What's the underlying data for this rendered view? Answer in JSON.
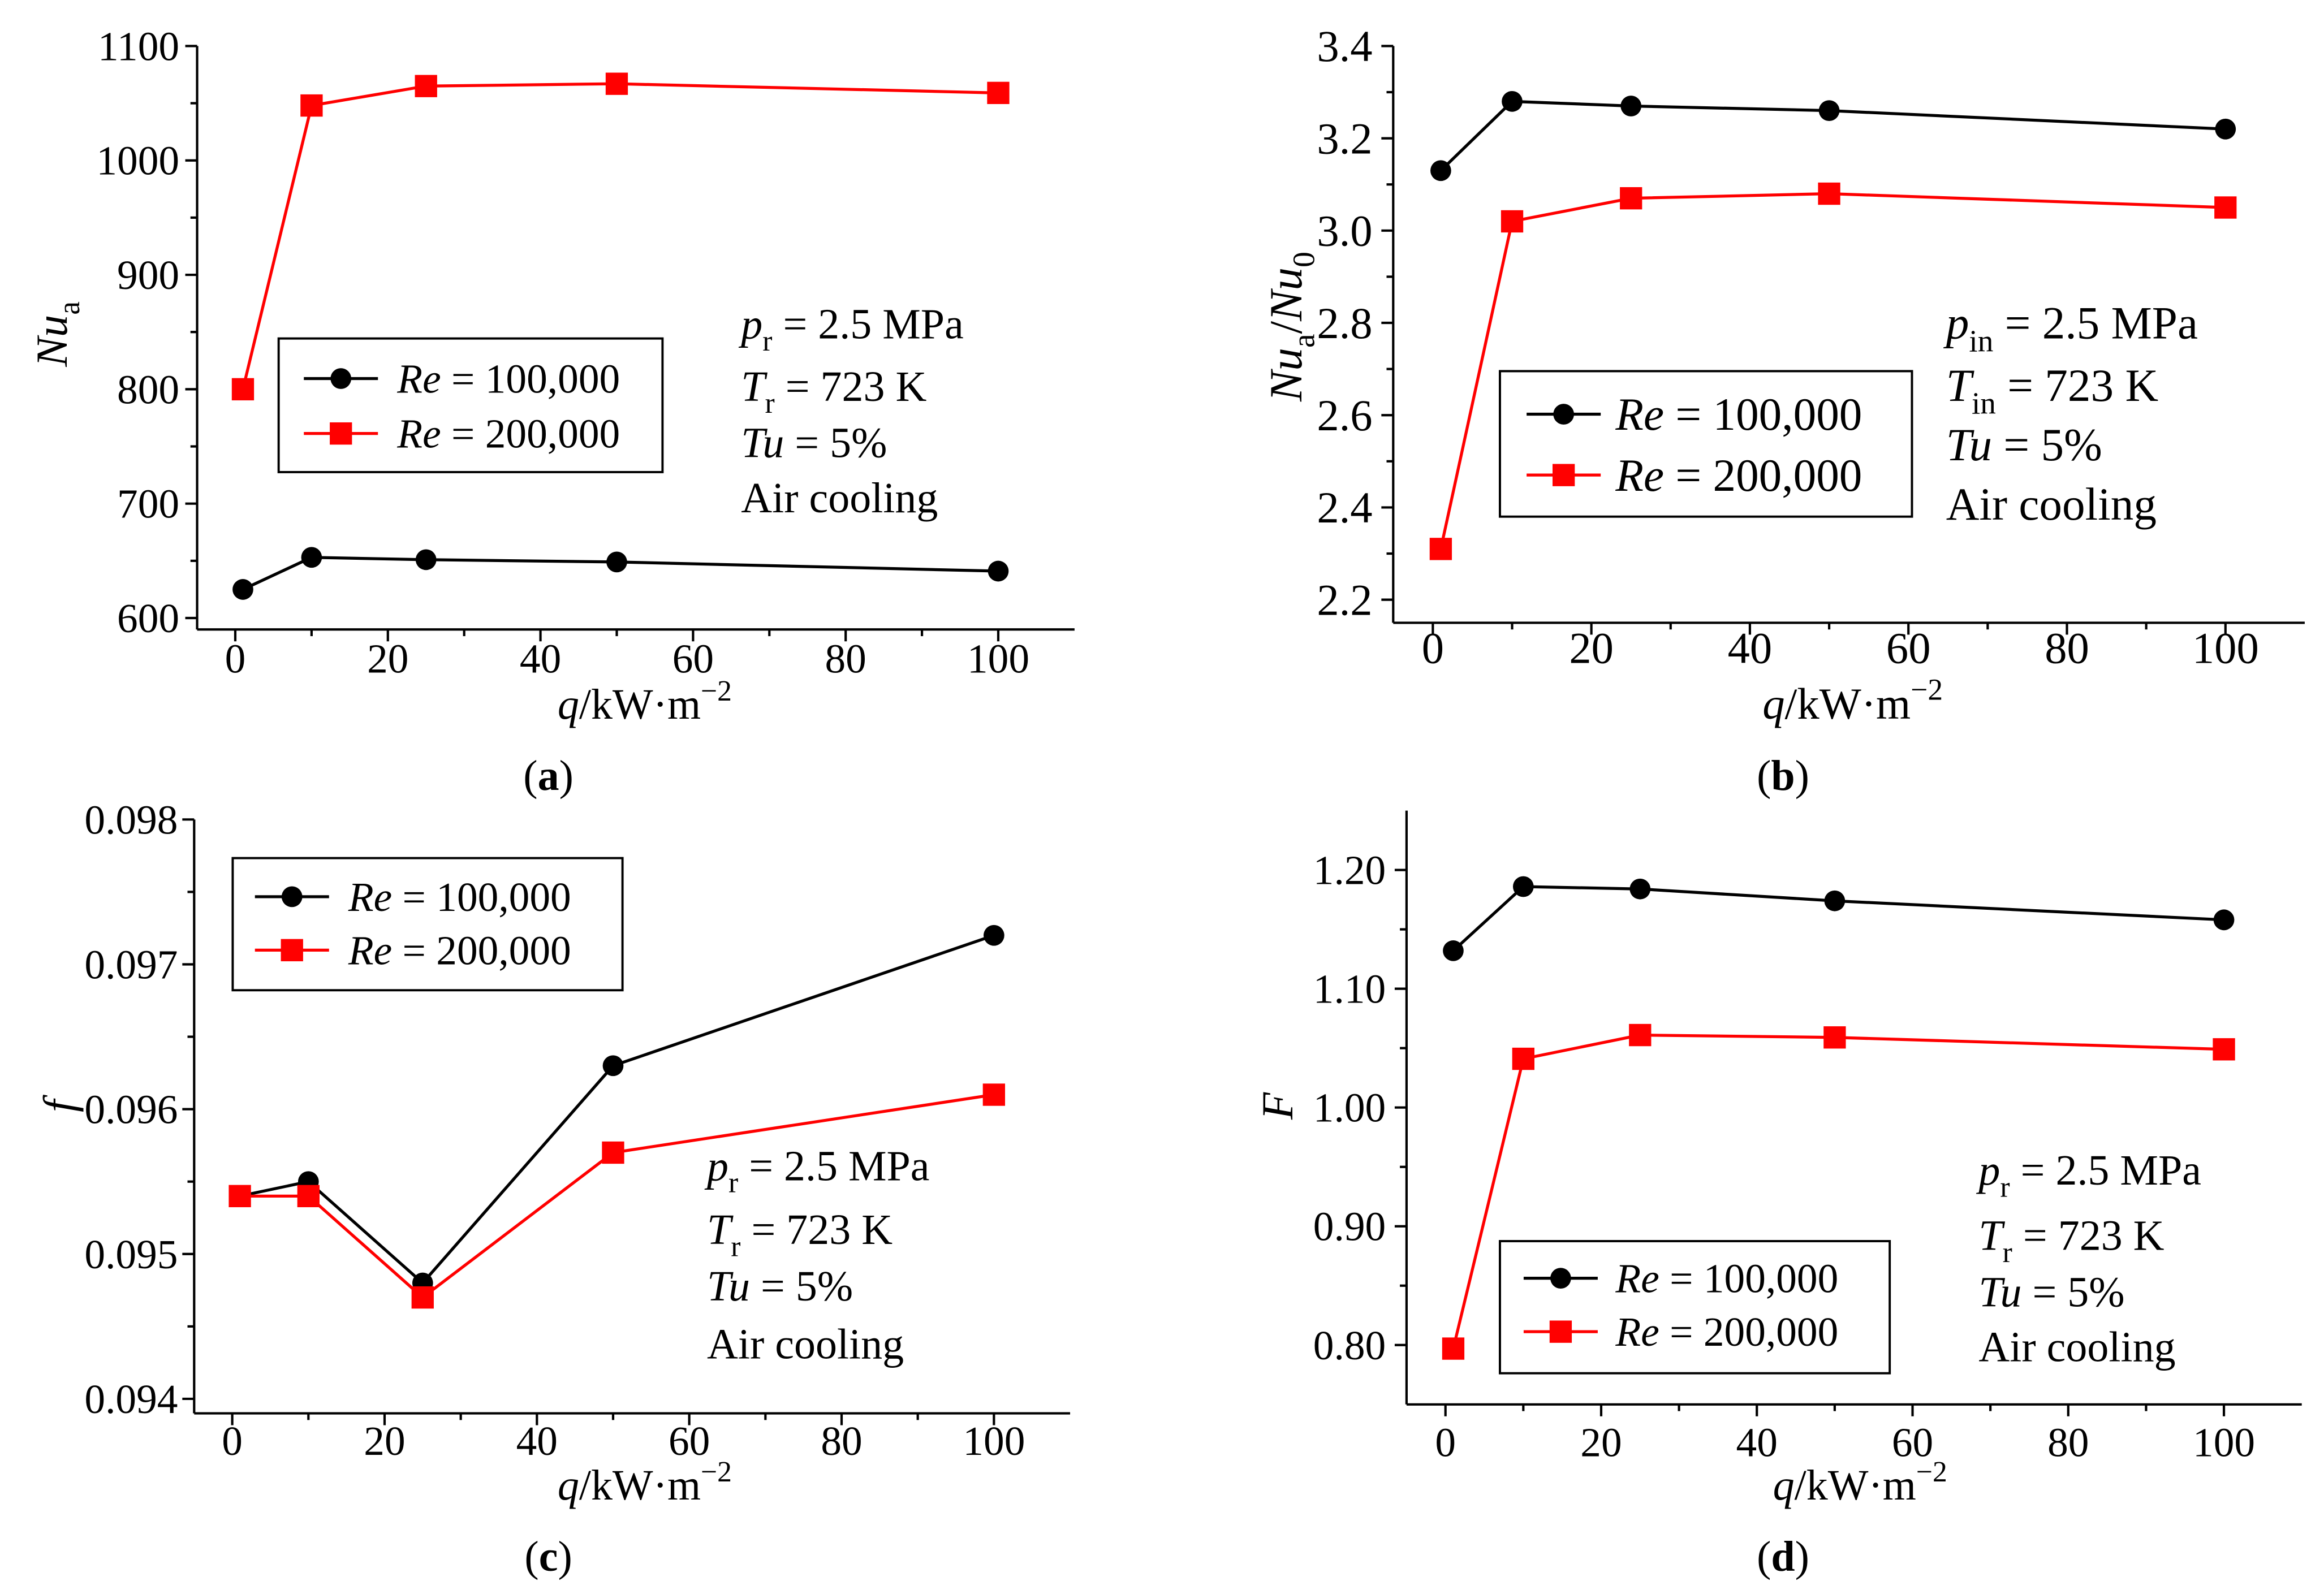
{
  "chart_data": [
    {
      "type": "line",
      "panel_label": [
        {
          "text": "("
        },
        {
          "text": "a",
          "bold": true
        },
        {
          "text": ")"
        }
      ],
      "xlabel": [
        {
          "text": "q",
          "italic": true
        },
        {
          "text": "/kW·m"
        },
        {
          "text": "−2",
          "sup": true
        }
      ],
      "ylabel": [
        {
          "text": "Nu",
          "italic": true
        },
        {
          "text": "a",
          "sub": true
        }
      ],
      "x": [
        1,
        10,
        25,
        50,
        100
      ],
      "xlim": [
        -5,
        110
      ],
      "ylim": [
        590,
        1100
      ],
      "xticks": [
        0,
        20,
        40,
        60,
        80,
        100
      ],
      "xtick_labels": [
        "0",
        "20",
        "40",
        "60",
        "80",
        "100"
      ],
      "yticks": [
        600,
        700,
        800,
        900,
        1000,
        1100
      ],
      "ytick_labels": [
        "600",
        "700",
        "800",
        "900",
        "1000",
        "1100"
      ],
      "grid": false,
      "legend_position": "center-left",
      "series": [
        {
          "name": "Re = 100,000",
          "label": [
            {
              "text": "Re",
              "italic": true
            },
            {
              "text": " = 100,000"
            }
          ],
          "color": "#000000",
          "marker": "circle",
          "values": [
            625,
            653,
            651,
            649,
            641
          ]
        },
        {
          "name": "Re = 200,000",
          "label": [
            {
              "text": "Re",
              "italic": true
            },
            {
              "text": " = 200,000"
            }
          ],
          "color": "#ff0000",
          "marker": "square",
          "values": [
            800,
            1048,
            1065,
            1067,
            1059
          ]
        }
      ],
      "annotations": [
        [
          {
            "text": "p",
            "italic": true
          },
          {
            "text": "r",
            "sub": true
          },
          {
            "text": " = 2.5 MPa"
          }
        ],
        [
          {
            "text": "T",
            "italic": true
          },
          {
            "text": "r",
            "sub": true
          },
          {
            "text": " = 723 K"
          }
        ],
        [
          {
            "text": "Tu",
            "italic": true
          },
          {
            "text": " = 5%"
          }
        ],
        [
          {
            "text": "Air cooling"
          }
        ]
      ]
    },
    {
      "type": "line",
      "panel_label": [
        {
          "text": "("
        },
        {
          "text": "b",
          "bold": true
        },
        {
          "text": ")"
        }
      ],
      "xlabel": [
        {
          "text": "q",
          "italic": true
        },
        {
          "text": "/kW·m"
        },
        {
          "text": "−2",
          "sup": true
        }
      ],
      "ylabel": [
        {
          "text": "Nu",
          "italic": true
        },
        {
          "text": "a",
          "sub": true
        },
        {
          "text": "/"
        },
        {
          "text": "Nu",
          "italic": true
        },
        {
          "text": "0",
          "sub": true
        }
      ],
      "x": [
        1,
        10,
        25,
        50,
        100
      ],
      "xlim": [
        -5,
        110
      ],
      "ylim": [
        2.15,
        3.4
      ],
      "xticks": [
        0,
        20,
        40,
        60,
        80,
        100
      ],
      "xtick_labels": [
        "0",
        "20",
        "40",
        "60",
        "80",
        "100"
      ],
      "yticks": [
        2.2,
        2.4,
        2.6,
        2.8,
        3.0,
        3.2,
        3.4
      ],
      "ytick_labels": [
        "2.2",
        "2.4",
        "2.6",
        "2.8",
        "3.0",
        "3.2",
        "3.4"
      ],
      "grid": false,
      "legend_position": "center-left",
      "series": [
        {
          "name": "Re = 100,000",
          "label": [
            {
              "text": "Re",
              "italic": true
            },
            {
              "text": " = 100,000"
            }
          ],
          "color": "#000000",
          "marker": "circle",
          "values": [
            3.13,
            3.28,
            3.27,
            3.26,
            3.22
          ]
        },
        {
          "name": "Re = 200,000",
          "label": [
            {
              "text": "Re",
              "italic": true
            },
            {
              "text": " = 200,000"
            }
          ],
          "color": "#ff0000",
          "marker": "square",
          "values": [
            2.31,
            3.02,
            3.07,
            3.08,
            3.05
          ]
        }
      ],
      "annotations": [
        [
          {
            "text": "p",
            "italic": true
          },
          {
            "text": "in",
            "sub": true
          },
          {
            "text": " = 2.5 MPa"
          }
        ],
        [
          {
            "text": "T",
            "italic": true
          },
          {
            "text": "in",
            "sub": true
          },
          {
            "text": " = 723 K"
          }
        ],
        [
          {
            "text": "Tu",
            "italic": true
          },
          {
            "text": " = 5%"
          }
        ],
        [
          {
            "text": "Air cooling"
          }
        ]
      ]
    },
    {
      "type": "line",
      "panel_label": [
        {
          "text": "("
        },
        {
          "text": "c",
          "bold": true
        },
        {
          "text": ")"
        }
      ],
      "xlabel": [
        {
          "text": "q",
          "italic": true
        },
        {
          "text": "/kW·m"
        },
        {
          "text": "−2",
          "sup": true
        }
      ],
      "ylabel": [
        {
          "text": "f",
          "italic": true
        }
      ],
      "x": [
        1,
        10,
        25,
        50,
        100
      ],
      "xlim": [
        -5,
        110
      ],
      "ylim": [
        0.0939,
        0.098
      ],
      "xticks": [
        0,
        20,
        40,
        60,
        80,
        100
      ],
      "xtick_labels": [
        "0",
        "20",
        "40",
        "60",
        "80",
        "100"
      ],
      "yticks": [
        0.094,
        0.095,
        0.096,
        0.097,
        0.098
      ],
      "ytick_labels": [
        "0.094",
        "0.095",
        "0.096",
        "0.097",
        "0.098"
      ],
      "grid": false,
      "legend_position": "upper-left",
      "series": [
        {
          "name": "Re = 100,000",
          "label": [
            {
              "text": "Re",
              "italic": true
            },
            {
              "text": " = 100,000"
            }
          ],
          "color": "#000000",
          "marker": "circle",
          "values": [
            0.0954,
            0.0955,
            0.0948,
            0.0963,
            0.0972
          ]
        },
        {
          "name": "Re = 200,000",
          "label": [
            {
              "text": "Re",
              "italic": true
            },
            {
              "text": " = 200,000"
            }
          ],
          "color": "#ff0000",
          "marker": "square",
          "values": [
            0.0954,
            0.0954,
            0.0947,
            0.0957,
            0.0961
          ]
        }
      ],
      "annotations": [
        [
          {
            "text": "p",
            "italic": true
          },
          {
            "text": "r",
            "sub": true
          },
          {
            "text": " = 2.5 MPa"
          }
        ],
        [
          {
            "text": "T",
            "italic": true
          },
          {
            "text": "r",
            "sub": true
          },
          {
            "text": " = 723 K"
          }
        ],
        [
          {
            "text": "Tu",
            "italic": true
          },
          {
            "text": " = 5%"
          }
        ],
        [
          {
            "text": "Air cooling"
          }
        ]
      ]
    },
    {
      "type": "line",
      "panel_label": [
        {
          "text": "("
        },
        {
          "text": "d",
          "bold": true
        },
        {
          "text": ")"
        }
      ],
      "xlabel": [
        {
          "text": "q",
          "italic": true
        },
        {
          "text": "/kW·m"
        },
        {
          "text": "−2",
          "sup": true
        }
      ],
      "ylabel": [
        {
          "text": "F",
          "italic": true
        }
      ],
      "x": [
        1,
        10,
        25,
        50,
        100
      ],
      "xlim": [
        -5,
        110
      ],
      "ylim": [
        0.75,
        1.25
      ],
      "xticks": [
        0,
        20,
        40,
        60,
        80,
        100
      ],
      "xtick_labels": [
        "0",
        "20",
        "40",
        "60",
        "80",
        "100"
      ],
      "yticks": [
        0.8,
        0.9,
        1.0,
        1.1,
        1.2
      ],
      "ytick_labels": [
        "0.80",
        "0.90",
        "1.00",
        "1.10",
        "1.20"
      ],
      "grid": false,
      "legend_position": "lower-left",
      "series": [
        {
          "name": "Re = 100,000",
          "label": [
            {
              "text": "Re",
              "italic": true
            },
            {
              "text": " = 100,000"
            }
          ],
          "color": "#000000",
          "marker": "circle",
          "values": [
            1.132,
            1.186,
            1.184,
            1.174,
            1.158
          ]
        },
        {
          "name": "Re = 200,000",
          "label": [
            {
              "text": "Re",
              "italic": true
            },
            {
              "text": " = 200,000"
            }
          ],
          "color": "#ff0000",
          "marker": "square",
          "values": [
            0.797,
            1.041,
            1.061,
            1.059,
            1.049
          ]
        }
      ],
      "annotations": [
        [
          {
            "text": "p",
            "italic": true
          },
          {
            "text": "r",
            "sub": true
          },
          {
            "text": " = 2.5 MPa"
          }
        ],
        [
          {
            "text": "T",
            "italic": true
          },
          {
            "text": "r",
            "sub": true
          },
          {
            "text": " = 723 K"
          }
        ],
        [
          {
            "text": "Tu",
            "italic": true
          },
          {
            "text": " = 5%"
          }
        ],
        [
          {
            "text": "Air cooling"
          }
        ]
      ]
    }
  ]
}
